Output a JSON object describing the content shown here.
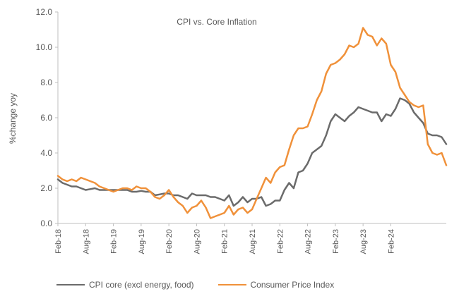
{
  "chart_data": {
    "type": "line",
    "title": "CPI vs. Core Inflation",
    "ylabel": "%change yoy",
    "xlabel": "",
    "ylim": [
      0,
      12
    ],
    "yticks": [
      "0.0",
      "2.0",
      "4.0",
      "6.0",
      "8.0",
      "10.0",
      "12.0"
    ],
    "xticks": [
      "Feb-18",
      "Aug-18",
      "Feb-19",
      "Aug-19",
      "Feb-20",
      "Aug-20",
      "Feb-21",
      "Aug-21",
      "Feb-22",
      "Aug-22",
      "Feb-23",
      "Aug-23",
      "Feb-24"
    ],
    "x_start": "2018-02",
    "x_end": "2024-02",
    "grid": false,
    "legend_position": "bottom",
    "series": [
      {
        "name": "CPI core (excl energy, food)",
        "color": "#6b6b6b",
        "values": [
          2.5,
          2.3,
          2.2,
          2.1,
          2.1,
          2.0,
          1.9,
          1.95,
          2.0,
          1.9,
          1.9,
          1.9,
          1.9,
          1.9,
          1.9,
          1.9,
          1.8,
          1.8,
          1.85,
          1.8,
          1.8,
          1.6,
          1.65,
          1.7,
          1.7,
          1.6,
          1.6,
          1.5,
          1.4,
          1.7,
          1.6,
          1.6,
          1.6,
          1.5,
          1.5,
          1.4,
          1.3,
          1.6,
          1.0,
          1.2,
          1.5,
          1.2,
          1.4,
          1.4,
          1.5,
          1.0,
          1.1,
          1.3,
          1.3,
          1.9,
          2.3,
          2.0,
          2.9,
          3.0,
          3.4,
          4.0,
          4.2,
          4.4,
          5.0,
          5.8,
          6.2,
          6.0,
          5.8,
          6.1,
          6.3,
          6.6,
          6.5,
          6.4,
          6.3,
          6.3,
          5.8,
          6.2,
          6.1,
          6.5,
          7.1,
          7.0,
          6.8,
          6.3,
          6.0,
          5.7,
          5.1,
          5.0,
          5.0,
          4.9,
          4.5
        ]
      },
      {
        "name": "Consumer Price Index",
        "color": "#f0913a",
        "values": [
          2.7,
          2.5,
          2.4,
          2.5,
          2.4,
          2.6,
          2.5,
          2.4,
          2.3,
          2.1,
          2.0,
          1.9,
          1.8,
          1.9,
          2.0,
          2.0,
          1.9,
          2.1,
          2.0,
          2.0,
          1.8,
          1.5,
          1.4,
          1.6,
          1.9,
          1.5,
          1.2,
          1.0,
          0.6,
          0.9,
          1.0,
          1.3,
          0.9,
          0.3,
          0.4,
          0.5,
          0.6,
          1.0,
          0.5,
          0.8,
          0.9,
          0.6,
          0.8,
          1.4,
          2.0,
          2.6,
          2.3,
          2.9,
          3.2,
          3.3,
          4.2,
          5.0,
          5.4,
          5.4,
          5.5,
          6.2,
          7.0,
          7.5,
          8.5,
          9.0,
          9.1,
          9.3,
          9.6,
          10.1,
          10.0,
          10.2,
          11.1,
          10.7,
          10.6,
          10.1,
          10.5,
          10.2,
          9.0,
          8.6,
          7.7,
          7.3,
          6.9,
          6.7,
          6.6,
          6.7,
          4.5,
          4.0,
          3.9,
          4.0,
          3.3
        ]
      }
    ]
  }
}
